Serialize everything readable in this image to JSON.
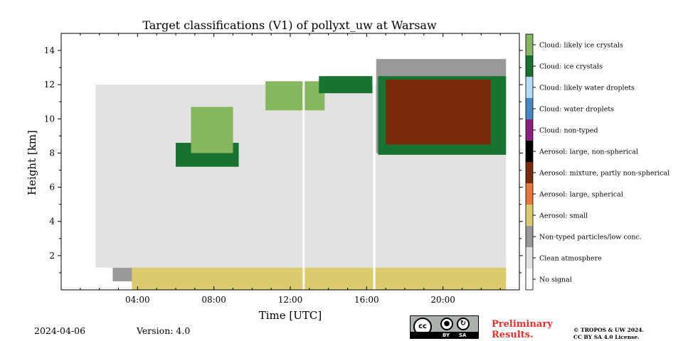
{
  "chart_data": {
    "type": "heatmap",
    "title": "Target classifications (V1) of pollyxt_uw at Warsaw",
    "xlabel": "Time [UTC]",
    "ylabel": "Height [km]",
    "xlim": [
      0,
      24
    ],
    "ylim": [
      0,
      15
    ],
    "x_ticks": [
      4,
      8,
      12,
      16,
      20
    ],
    "x_tick_labels": [
      "04:00",
      "08:00",
      "12:00",
      "16:00",
      "20:00"
    ],
    "y_ticks": [
      2,
      4,
      6,
      8,
      10,
      12,
      14
    ],
    "y_tick_labels": [
      "2",
      "4",
      "6",
      "8",
      "10",
      "12",
      "14"
    ],
    "classes": [
      {
        "label": "No signal",
        "color": "#ffffff"
      },
      {
        "label": "Clean atmosphere",
        "color": "#e2e2e2"
      },
      {
        "label": "Non-typed particles/low conc.",
        "color": "#999999"
      },
      {
        "label": "Aerosol: small",
        "color": "#dccb6e"
      },
      {
        "label": "Aerosol: large, spherical",
        "color": "#e87836"
      },
      {
        "label": "Aerosol: mixture, partly non-spherical",
        "color": "#7c2a0c"
      },
      {
        "label": "Aerosol: large, non-spherical",
        "color": "#000000"
      },
      {
        "label": "Cloud: non-typed",
        "color": "#8a1f86"
      },
      {
        "label": "Cloud: water droplets",
        "color": "#4289c7"
      },
      {
        "label": "Cloud: likely water droplets",
        "color": "#b5dcf6"
      },
      {
        "label": "Cloud: ice crystals",
        "color": "#167332"
      },
      {
        "label": "Cloud: likely ice crystals",
        "color": "#86b75e"
      }
    ],
    "regions": [
      {
        "class": "Non-typed particles/low conc.",
        "t_start": 2.7,
        "t_end": 23.3,
        "h_bottom": 0.5,
        "h_top": 1.3
      },
      {
        "class": "Aerosol: small",
        "t_start": 3.7,
        "t_end": 23.3,
        "h_bottom": 0.0,
        "h_top": 2.0
      },
      {
        "class": "Clean atmosphere",
        "t_start": 1.8,
        "t_end": 23.3,
        "h_bottom": 1.3,
        "h_top": 12.0
      },
      {
        "class": "Non-typed particles/low conc.",
        "t_start": 16.5,
        "t_end": 23.3,
        "h_bottom": 8.0,
        "h_top": 13.5
      },
      {
        "class": "Cloud: ice crystals",
        "t_start": 6.0,
        "t_end": 9.3,
        "h_bottom": 7.2,
        "h_top": 8.6
      },
      {
        "class": "Cloud: likely ice crystals",
        "t_start": 6.8,
        "t_end": 9.0,
        "h_bottom": 8.0,
        "h_top": 10.7
      },
      {
        "class": "Cloud: likely ice crystals",
        "t_start": 10.7,
        "t_end": 13.8,
        "h_bottom": 10.5,
        "h_top": 12.2
      },
      {
        "class": "Cloud: ice crystals",
        "t_start": 13.5,
        "t_end": 16.3,
        "h_bottom": 11.5,
        "h_top": 12.5
      },
      {
        "class": "Cloud: ice crystals",
        "t_start": 16.6,
        "t_end": 23.3,
        "h_bottom": 7.9,
        "h_top": 12.5
      },
      {
        "class": "Aerosol: mixture, partly non-spherical",
        "t_start": 17.0,
        "t_end": 22.5,
        "h_bottom": 8.5,
        "h_top": 12.3
      }
    ],
    "gaps": [
      {
        "t": 16.4,
        "label": "No signal"
      },
      {
        "t": 12.7,
        "label": "No signal"
      }
    ],
    "grid": false,
    "legend": "right colorbar"
  },
  "footer": {
    "date": "2024-04-06",
    "version": "Version: 4.0",
    "preliminary": [
      "Preliminary",
      "Results."
    ],
    "copyright": [
      "© TROPOS & UW 2024.",
      "CC BY SA 4.0 License."
    ],
    "license_badge": {
      "left": "cc",
      "by": "BY",
      "sa": "SA"
    }
  },
  "icons": {
    "license": "creative-commons-icon"
  }
}
